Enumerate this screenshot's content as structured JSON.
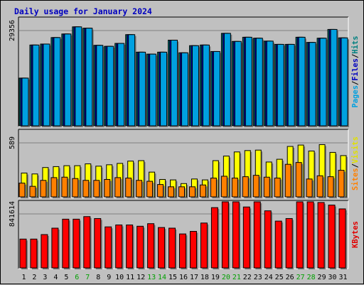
{
  "chart_data": {
    "type": "bar",
    "title": "Daily usage for January 2024",
    "categories": [
      "1",
      "2",
      "3",
      "4",
      "5",
      "6",
      "7",
      "8",
      "9",
      "10",
      "11",
      "12",
      "13",
      "14",
      "15",
      "16",
      "17",
      "18",
      "19",
      "20",
      "21",
      "22",
      "23",
      "24",
      "25",
      "26",
      "27",
      "28",
      "29",
      "30",
      "31"
    ],
    "weekend_days": [
      "6",
      "7",
      "13",
      "14",
      "20",
      "21",
      "27",
      "28"
    ],
    "panels": [
      {
        "name": "hits-files-pages",
        "ytick_label": "29356",
        "ymax": 29356,
        "axis_label_parts": [
          {
            "text": "Pages",
            "color": "#00a0e0"
          },
          {
            "text": "/",
            "color": "#000000"
          },
          {
            "text": "Files",
            "color": "#0000c0"
          },
          {
            "text": "/",
            "color": "#000000"
          },
          {
            "text": "Hits",
            "color": "#008080"
          }
        ],
        "series": [
          {
            "name": "Hits",
            "color": "#008080",
            "values": [
              14700,
              24900,
              25200,
              27200,
              28300,
              30500,
              30100,
              24800,
              24500,
              25400,
              28100,
              22700,
              22100,
              22700,
              26400,
              22500,
              24700,
              24900,
              22900,
              28500,
              26000,
              27300,
              27000,
              26100,
              25100,
              25100,
              27300,
              25700,
              27000,
              29700,
              27100
            ]
          },
          {
            "name": "Files",
            "color": "#0000c0",
            "values": [
              14700,
              24900,
              25200,
              27200,
              28300,
              30500,
              30100,
              24800,
              24500,
              25400,
              28100,
              22700,
              22100,
              22700,
              26400,
              22500,
              24700,
              24900,
              22900,
              28500,
              26000,
              27300,
              27000,
              26100,
              25100,
              25100,
              27300,
              25700,
              27000,
              29700,
              27100
            ]
          },
          {
            "name": "Pages",
            "color": "#00a0e0",
            "values": [
              14700,
              24900,
              25200,
              27200,
              28300,
              30500,
              30100,
              24800,
              24500,
              25400,
              28100,
              22700,
              22100,
              22700,
              26400,
              22500,
              24700,
              24900,
              22900,
              28500,
              26000,
              27300,
              27000,
              26100,
              25100,
              25100,
              27300,
              25700,
              27000,
              29700,
              27100
            ]
          }
        ]
      },
      {
        "name": "visits-sites",
        "ytick_label": "589",
        "ymax": 589,
        "axis_label_parts": [
          {
            "text": "Sites",
            "color": "#ff8000"
          },
          {
            "text": "/",
            "color": "#000000"
          },
          {
            "text": "Visits",
            "color": "#e0e000"
          }
        ],
        "series": [
          {
            "name": "Visits",
            "color": "#ffff00",
            "values": [
              260,
              250,
              320,
              330,
              340,
              340,
              360,
              335,
              350,
              365,
              390,
              395,
              270,
              190,
              185,
              145,
              195,
              185,
              395,
              445,
              490,
              505,
              510,
              380,
              410,
              550,
              565,
              500,
              570,
              485,
              450
            ]
          },
          {
            "name": "Sites",
            "color": "#ff8000",
            "values": [
              150,
              115,
              180,
              210,
              215,
              200,
              180,
              180,
              190,
              210,
              205,
              180,
              170,
              135,
              110,
              110,
              110,
              130,
              205,
              225,
              205,
              220,
              235,
              215,
              205,
              355,
              375,
              195,
              230,
              220,
              290
            ]
          }
        ]
      },
      {
        "name": "kbytes",
        "ytick_label": "841614",
        "ymax": 841614,
        "axis_label_parts": [
          {
            "text": "KBytes",
            "color": "#e00000"
          }
        ],
        "series": [
          {
            "name": "KBytes",
            "color": "#ff0000",
            "values": [
              450000,
              450000,
              520000,
              620000,
              760000,
              760000,
              800000,
              770000,
              640000,
              670000,
              670000,
              650000,
              690000,
              630000,
              620000,
              530000,
              570000,
              700000,
              940000,
              1060000,
              1030000,
              950000,
              1080000,
              890000,
              730000,
              770000,
              1050000,
              1040000,
              1020000,
              980000,
              920000
            ]
          }
        ]
      }
    ]
  }
}
